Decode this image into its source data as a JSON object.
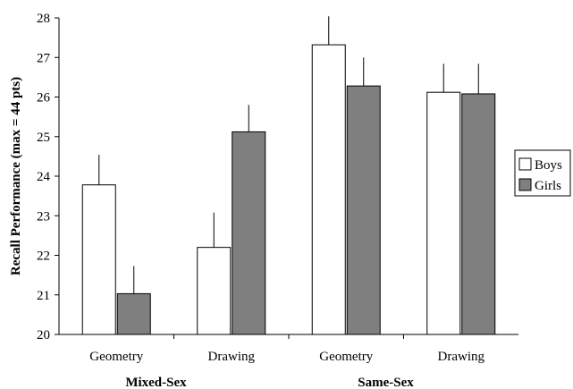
{
  "chart_data": {
    "type": "bar",
    "title": "",
    "xlabel": "",
    "ylabel": "Recall Performance (max = 44 pts)",
    "ylim": [
      20,
      28
    ],
    "yticks": [
      20,
      21,
      22,
      23,
      24,
      25,
      26,
      27,
      28
    ],
    "grid": false,
    "legend_position": "right",
    "groups": [
      {
        "label": "Mixed-Sex",
        "categories": [
          "Geometry",
          "Drawing"
        ]
      },
      {
        "label": "Same-Sex",
        "categories": [
          "Geometry",
          "Drawing"
        ]
      }
    ],
    "categories": [
      "Geometry",
      "Drawing",
      "Geometry",
      "Drawing"
    ],
    "series": [
      {
        "name": "Boys",
        "color": "#ffffff",
        "values": [
          23.78,
          22.2,
          27.32,
          26.12
        ],
        "errors": [
          0.76,
          0.88,
          0.72,
          0.72
        ]
      },
      {
        "name": "Girls",
        "color": "#7f7f7f",
        "values": [
          21.03,
          25.12,
          26.28,
          26.08
        ],
        "errors": [
          0.7,
          0.68,
          0.72,
          0.76
        ]
      }
    ]
  }
}
